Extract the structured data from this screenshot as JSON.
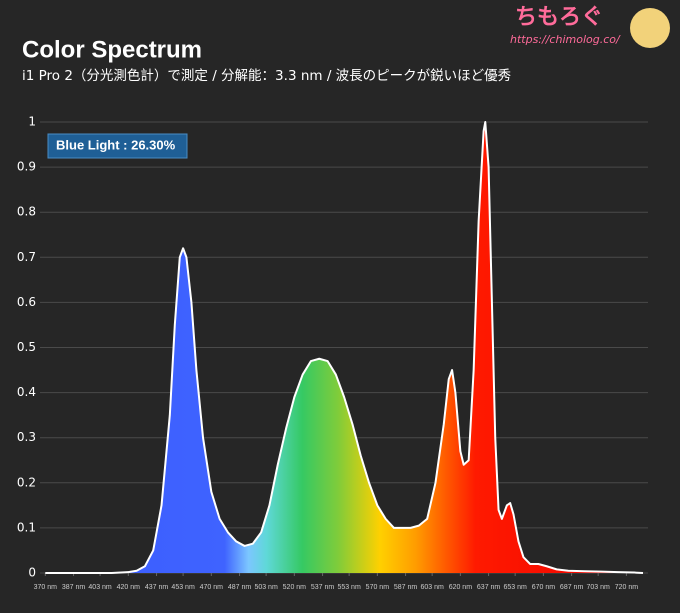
{
  "watermark": {
    "site": "ちもろぐ",
    "url": "https://chimolog.co/"
  },
  "chart_data": {
    "type": "area",
    "title": "Color Spectrum",
    "subtitle": "i1 Pro 2（分光測色計）で測定 / 分解能：3.3 nm / 波長のピークが鋭いほど優秀",
    "annotation": "Blue Light : 26.30%",
    "x": [
      370,
      380,
      390,
      400,
      410,
      420,
      425,
      430,
      435,
      440,
      445,
      448,
      451,
      453,
      455,
      458,
      461,
      465,
      470,
      475,
      480,
      485,
      490,
      495,
      500,
      505,
      510,
      515,
      520,
      525,
      530,
      535,
      540,
      545,
      550,
      555,
      560,
      565,
      570,
      575,
      580,
      585,
      590,
      595,
      600,
      605,
      610,
      613,
      615,
      617,
      620,
      622,
      625,
      628,
      631,
      634,
      635,
      637,
      639,
      641,
      643,
      645,
      648,
      650,
      652,
      655,
      658,
      662,
      667,
      672,
      678,
      685,
      695,
      705,
      715,
      725,
      730
    ],
    "values": [
      0,
      0,
      0,
      0,
      0,
      0.002,
      0.005,
      0.015,
      0.05,
      0.15,
      0.35,
      0.55,
      0.7,
      0.72,
      0.7,
      0.6,
      0.45,
      0.3,
      0.18,
      0.12,
      0.09,
      0.07,
      0.06,
      0.065,
      0.09,
      0.15,
      0.24,
      0.32,
      0.39,
      0.44,
      0.47,
      0.475,
      0.47,
      0.44,
      0.39,
      0.33,
      0.26,
      0.2,
      0.15,
      0.12,
      0.1,
      0.1,
      0.1,
      0.105,
      0.12,
      0.2,
      0.33,
      0.43,
      0.45,
      0.4,
      0.27,
      0.24,
      0.25,
      0.45,
      0.78,
      0.98,
      1.0,
      0.9,
      0.6,
      0.3,
      0.14,
      0.12,
      0.15,
      0.155,
      0.13,
      0.07,
      0.035,
      0.02,
      0.02,
      0.015,
      0.008,
      0.005,
      0.004,
      0.003,
      0.002,
      0.001,
      0
    ],
    "line_color": "#ffffff",
    "xlim": [
      365,
      730
    ],
    "xticks": [
      {
        "value": 370,
        "label": "370 nm"
      },
      {
        "value": 387,
        "label": "387 nm"
      },
      {
        "value": 403,
        "label": "403 nm"
      },
      {
        "value": 420,
        "label": "420 nm"
      },
      {
        "value": 437,
        "label": "437 nm"
      },
      {
        "value": 453,
        "label": "453 nm"
      },
      {
        "value": 470,
        "label": "470 nm"
      },
      {
        "value": 487,
        "label": "487 nm"
      },
      {
        "value": 503,
        "label": "503 nm"
      },
      {
        "value": 520,
        "label": "520 nm"
      },
      {
        "value": 537,
        "label": "537 nm"
      },
      {
        "value": 553,
        "label": "553 nm"
      },
      {
        "value": 570,
        "label": "570 nm"
      },
      {
        "value": 587,
        "label": "587 nm"
      },
      {
        "value": 603,
        "label": "603 nm"
      },
      {
        "value": 620,
        "label": "620 nm"
      },
      {
        "value": 637,
        "label": "637 nm"
      },
      {
        "value": 653,
        "label": "653 nm"
      },
      {
        "value": 670,
        "label": "670 nm"
      },
      {
        "value": 687,
        "label": "687 nm"
      },
      {
        "value": 703,
        "label": "703 nm"
      },
      {
        "value": 720,
        "label": "720 nm"
      }
    ],
    "ylim": [
      0,
      1
    ],
    "yticks": [
      0,
      0.1,
      0.2,
      0.3,
      0.4,
      0.5,
      0.6,
      0.7,
      0.8,
      0.9,
      1
    ],
    "grid": true
  }
}
